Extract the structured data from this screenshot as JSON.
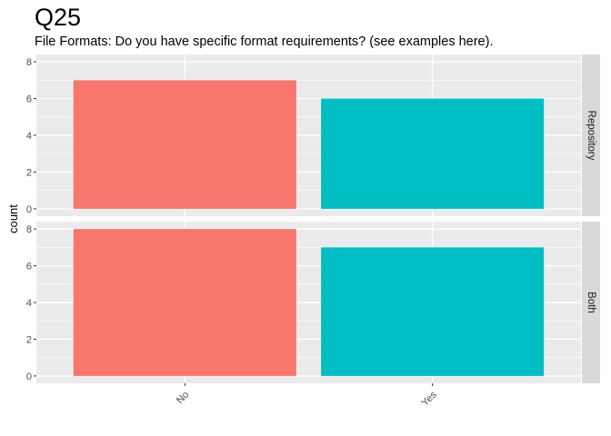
{
  "chart_data": {
    "type": "bar",
    "title": "Q25",
    "subtitle": "File Formats: Do you have specific format requirements? (see examples here).",
    "xlabel": "",
    "ylabel": "count",
    "categories": [
      "No",
      "Yes"
    ],
    "colors": [
      "#F8766D",
      "#00BFC4"
    ],
    "ylim": [
      0,
      8
    ],
    "yticks": [
      0,
      2,
      4,
      6,
      8
    ],
    "grid": true,
    "legend": "none",
    "facets": [
      {
        "name": "Repository",
        "values": [
          7,
          6
        ]
      },
      {
        "name": "Both",
        "values": [
          8,
          7
        ]
      }
    ]
  }
}
